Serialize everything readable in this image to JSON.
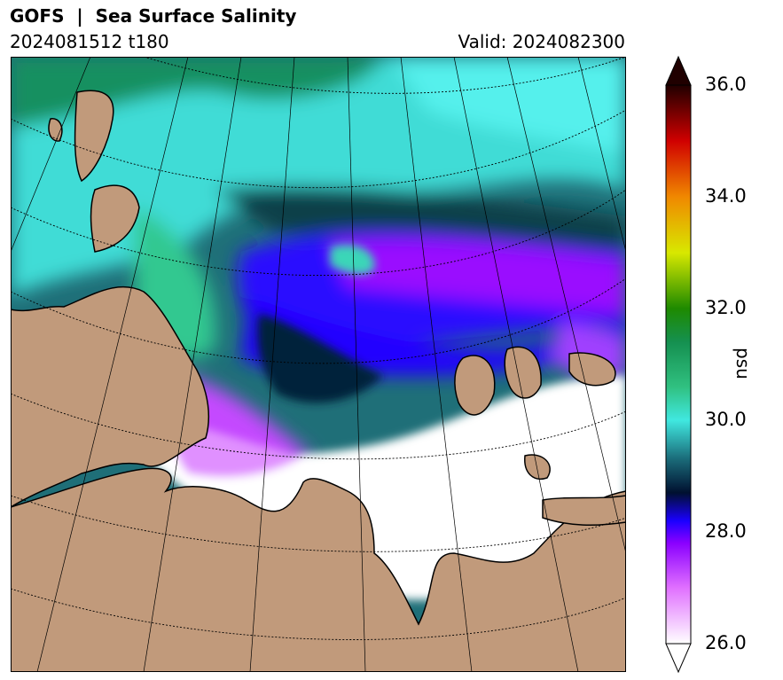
{
  "header": {
    "title": "GOFS  |  Sea Surface Salinity",
    "run": "2024081512 t180",
    "valid": "Valid: 2024082300"
  },
  "colorbar": {
    "unit": "psu",
    "min": 26.0,
    "max": 36.0,
    "ticks": [
      "36.0",
      "34.0",
      "32.0",
      "30.0",
      "28.0",
      "26.0"
    ],
    "extend": "both",
    "colors": {
      "26": "#ffffff",
      "27": "#e070ff",
      "27.8": "#8a00ff",
      "28.2": "#1a00ff",
      "28.7": "#001030",
      "29.3": "#1a6a78",
      "30": "#40e8e0",
      "30.6": "#30c080",
      "31.4": "#159050",
      "32": "#1e8a00",
      "33": "#d8e800",
      "34": "#f08800",
      "35": "#d00000",
      "36": "#200000"
    }
  },
  "map": {
    "land_color": "#c19a7b",
    "no_data_color": "#ffffff"
  }
}
